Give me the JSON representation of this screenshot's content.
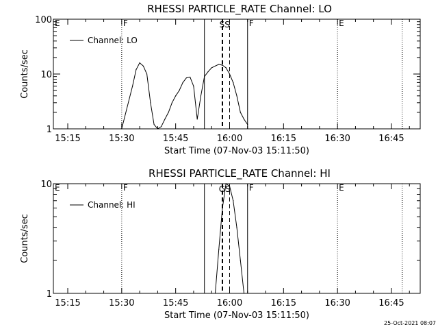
{
  "footer_timestamp": "25-Oct-2021 08:07",
  "x_axis": {
    "label": "Start Time (07-Nov-03 15:11:50)",
    "ticks": [
      "15:15",
      "15:30",
      "15:45",
      "16:00",
      "16:15",
      "16:30",
      "16:45"
    ]
  },
  "chart_data": [
    {
      "type": "line",
      "title": "RHESSI PARTICLE_RATE Channel: LO",
      "ylabel": "Counts/sec",
      "yscale": "log",
      "ylim": [
        1,
        100
      ],
      "y_ticks": [
        "1",
        "10",
        "100"
      ],
      "xlim": [
        "15:11",
        "16:53"
      ],
      "legend": "top-left",
      "series": [
        {
          "name": "Channel: LO",
          "x": [
            "15:30",
            "15:33",
            "15:34",
            "15:35",
            "15:36",
            "15:37",
            "15:38",
            "15:39",
            "15:40",
            "15:41",
            "15:42",
            "15:43",
            "15:44",
            "15:45",
            "15:46",
            "15:47",
            "15:48",
            "15:49",
            "15:50",
            "15:51",
            "15:52",
            "15:53",
            "15:54",
            "15:55",
            "15:56",
            "15:57",
            "15:58",
            "15:59",
            "16:00",
            "16:01",
            "16:02",
            "16:03",
            "16:04",
            "16:05"
          ],
          "values": [
            1,
            6,
            12,
            16,
            14,
            10,
            3,
            1.2,
            1,
            1.1,
            1.5,
            2,
            3,
            4,
            5,
            7,
            8.5,
            8.8,
            6,
            1.5,
            4,
            9,
            11,
            13,
            14,
            15,
            14.5,
            13,
            10,
            7,
            4,
            2,
            1.5,
            1.2
          ]
        }
      ],
      "region_markers": [
        {
          "label": "E",
          "time": "15:11"
        },
        {
          "label": "F",
          "time": "15:30"
        },
        {
          "label": "F",
          "time": "16:05"
        },
        {
          "label": "E",
          "time": "16:30"
        }
      ],
      "solid_markers": [
        "15:53",
        "16:05"
      ],
      "dotted_markers": [
        "15:30",
        "16:30",
        "16:48"
      ],
      "dashed_markers": [
        "15:58",
        "16:00"
      ],
      "ss_label": "SS"
    },
    {
      "type": "line",
      "title": "RHESSI PARTICLE_RATE Channel: HI",
      "ylabel": "Counts/sec",
      "yscale": "log",
      "ylim": [
        1,
        10
      ],
      "y_ticks": [
        "1",
        "10"
      ],
      "xlim": [
        "15:11",
        "16:53"
      ],
      "legend": "top-left",
      "series": [
        {
          "name": "Channel: HI",
          "x": [
            "15:56",
            "15:57",
            "15:58",
            "15:59",
            "16:00",
            "16:01",
            "16:02",
            "16:03",
            "16:04"
          ],
          "values": [
            1,
            2.5,
            6,
            10,
            9.5,
            7,
            4,
            2,
            1
          ]
        }
      ],
      "region_markers": [
        {
          "label": "E",
          "time": "15:11"
        },
        {
          "label": "F",
          "time": "15:30"
        },
        {
          "label": "F",
          "time": "16:05"
        },
        {
          "label": "E",
          "time": "16:30"
        }
      ],
      "solid_markers": [
        "15:53",
        "16:05"
      ],
      "dotted_markers": [
        "15:30",
        "16:30",
        "16:48"
      ],
      "dashed_markers": [
        "15:58",
        "16:00"
      ],
      "ss_label": "GS"
    }
  ]
}
